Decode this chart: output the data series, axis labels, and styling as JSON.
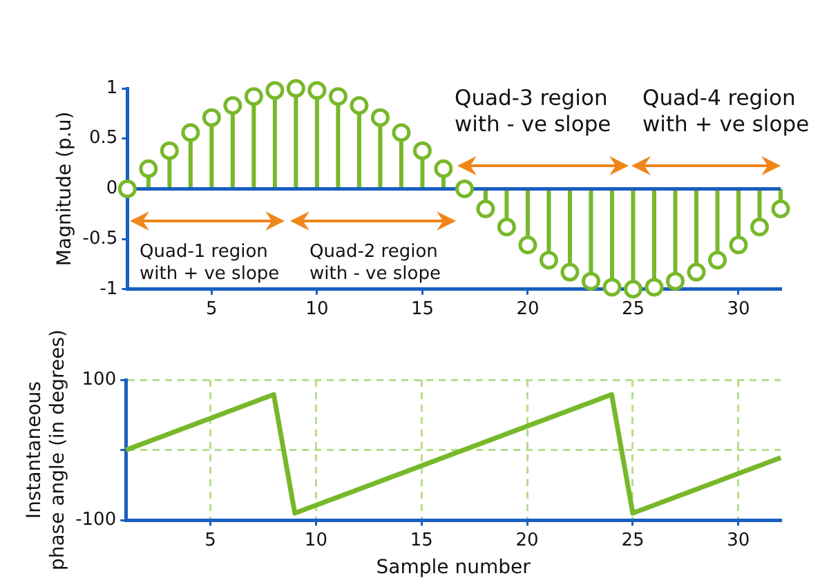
{
  "chart_data": [
    {
      "type": "lollipop",
      "ylabel": "Magnitude (p.u)",
      "x": [
        1,
        2,
        3,
        4,
        5,
        6,
        7,
        8,
        9,
        10,
        11,
        12,
        13,
        14,
        15,
        16,
        17,
        18,
        19,
        20,
        21,
        22,
        23,
        24,
        25,
        26,
        27,
        28,
        29,
        30,
        31,
        32
      ],
      "series": [
        {
          "color": "#77b82a",
          "values": [
            0,
            0.2,
            0.38,
            0.56,
            0.71,
            0.83,
            0.92,
            0.98,
            1,
            0.98,
            0.92,
            0.83,
            0.71,
            0.56,
            0.38,
            0.2,
            0,
            -0.2,
            -0.38,
            -0.56,
            -0.71,
            -0.83,
            -0.92,
            -0.98,
            -1,
            -0.98,
            -0.92,
            -0.83,
            -0.71,
            -0.56,
            -0.38,
            -0.2
          ]
        }
      ],
      "ref_lines": [
        {
          "axis": "y",
          "value": 0,
          "color": "#1a5fc0"
        }
      ],
      "xlim": [
        1,
        32
      ],
      "xticks": [
        5,
        10,
        15,
        20,
        25,
        30
      ],
      "ylim": [
        -1,
        1
      ],
      "yticks": [
        -1,
        -0.5,
        0,
        0.5,
        1
      ],
      "grid": false,
      "legend": false,
      "marker": "circle",
      "annotations": [
        "Quad-1 region\nwith + ve slope",
        "Quad-2 region\nwith - ve slope",
        "Quad-3 region\nwith - ve slope",
        "Quad-4 region\nwith + ve slope"
      ]
    },
    {
      "type": "line",
      "xlabel": "Sample number",
      "ylabel": "Instantaneous\nphase angle (in degrees)",
      "series": [
        {
          "color": "#77b82a",
          "x": [
            1,
            8,
            9,
            24,
            25,
            32
          ],
          "values": [
            0,
            79,
            -90,
            79,
            -90,
            -11
          ]
        }
      ],
      "xlim": [
        1,
        32
      ],
      "xticks": [
        5,
        10,
        15,
        20,
        25,
        30
      ],
      "ylim": [
        -100,
        100
      ],
      "yticks": [
        -100,
        {
          "value": 0,
          "label": null
        },
        100
      ],
      "grid": true,
      "legend": false,
      "marker": "none",
      "line_style": "solid"
    }
  ]
}
